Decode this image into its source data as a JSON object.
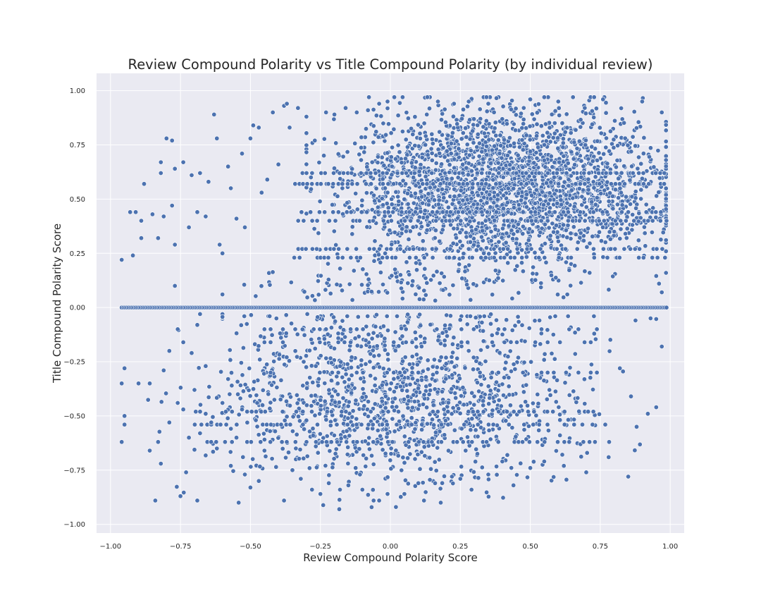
{
  "chart_data": {
    "type": "scatter",
    "title": "Review Compound Polarity vs Title Compound Polarity (by individual review)",
    "xlabel": "Review Compound Polarity Score",
    "ylabel": "Title Compound Polarity Score",
    "xlim": [
      -1.05,
      1.05
    ],
    "ylim": [
      -1.04,
      1.08
    ],
    "x_ticks": [
      -1.0,
      -0.75,
      -0.5,
      -0.25,
      0.0,
      0.25,
      0.5,
      0.75,
      1.0
    ],
    "x_tick_labels": [
      "−1.00",
      "−0.75",
      "−0.50",
      "−0.25",
      "0.00",
      "0.25",
      "0.50",
      "0.75",
      "1.00"
    ],
    "y_ticks": [
      -1.0,
      -0.75,
      -0.5,
      -0.25,
      0.0,
      0.25,
      0.5,
      0.75,
      1.0
    ],
    "y_tick_labels": [
      "−1.00",
      "−0.75",
      "−0.50",
      "−0.25",
      "0.00",
      "0.25",
      "0.50",
      "0.75",
      "1.00"
    ],
    "grid": true,
    "colors": {
      "plot_background": "#eaeaf2",
      "grid": "#ffffff",
      "marker": "#4c72b0",
      "marker_edge": "#ffffff",
      "text": "#262626"
    },
    "series": [
      {
        "points": [
          [
            -0.96,
            0.22
          ],
          [
            -0.96,
            -0.35
          ],
          [
            -0.95,
            -0.28
          ],
          [
            -0.95,
            -0.5
          ],
          [
            -0.95,
            -0.54
          ],
          [
            -0.96,
            -0.62
          ],
          [
            -0.93,
            0.44
          ],
          [
            -0.92,
            0.24
          ],
          [
            -0.91,
            0.44
          ],
          [
            -0.9,
            -0.35
          ],
          [
            -0.89,
            0.32
          ],
          [
            -0.89,
            0.4
          ],
          [
            -0.88,
            0.57
          ],
          [
            -0.86,
            -0.66
          ],
          [
            -0.85,
            0.43
          ],
          [
            -0.86,
            -0.35
          ],
          [
            -0.84,
            -0.89
          ],
          [
            -0.83,
            0.32
          ],
          [
            -0.82,
            0.67
          ],
          [
            -0.82,
            0.62
          ],
          [
            -0.81,
            0.42
          ],
          [
            -0.8,
            0.78
          ],
          [
            -0.78,
            0.77
          ],
          [
            -0.78,
            0.47
          ],
          [
            -0.77,
            0.64
          ],
          [
            -0.77,
            0.1
          ],
          [
            -0.77,
            0.29
          ],
          [
            -0.79,
            -0.2
          ],
          [
            -0.76,
            -0.44
          ],
          [
            -0.75,
            -0.87
          ],
          [
            -0.74,
            0.67
          ],
          [
            -0.73,
            -0.76
          ],
          [
            -0.72,
            0.37
          ],
          [
            -0.71,
            0.61
          ],
          [
            -0.69,
            -0.89
          ],
          [
            -0.69,
            0.44
          ],
          [
            -0.68,
            0.62
          ],
          [
            -0.66,
            0.42
          ],
          [
            -0.65,
            0.58
          ],
          [
            -0.63,
            0.89
          ],
          [
            -0.62,
            0.78
          ],
          [
            -0.61,
            0.29
          ],
          [
            -0.6,
            0.25
          ],
          [
            -0.58,
            0.65
          ],
          [
            -0.57,
            0.55
          ],
          [
            -0.55,
            0.41
          ],
          [
            -0.53,
            0.71
          ],
          [
            -0.52,
            0.37
          ],
          [
            -0.5,
            0.78
          ],
          [
            -0.49,
            0.84
          ],
          [
            -0.47,
            0.83
          ],
          [
            -0.46,
            0.53
          ],
          [
            -0.44,
            0.59
          ],
          [
            -0.42,
            0.9
          ],
          [
            -0.4,
            0.66
          ],
          [
            -0.38,
            0.93
          ],
          [
            -0.37,
            0.94
          ],
          [
            -0.36,
            0.83
          ],
          [
            -0.33,
            0.92
          ],
          [
            -0.3,
            0.88
          ],
          [
            -0.27,
            0.77
          ],
          [
            -0.23,
            0.9
          ],
          [
            -0.2,
            0.89
          ],
          [
            -0.16,
            0.92
          ],
          [
            -0.12,
            0.9
          ],
          [
            -0.08,
            0.91
          ],
          [
            -0.04,
            0.94
          ],
          [
            -0.01,
            0.95
          ],
          [
            0.17,
            0.95
          ],
          [
            0.28,
            0.95
          ],
          [
            0.35,
            0.94
          ],
          [
            0.5,
            0.96
          ],
          [
            0.55,
            0.97
          ],
          [
            0.6,
            0.95
          ],
          [
            0.76,
            0.96
          ],
          [
            0.9,
            0.95
          ],
          [
            0.97,
            0.9
          ],
          [
            -0.7,
            -0.38
          ],
          [
            -0.68,
            -0.58
          ],
          [
            -0.66,
            -0.27
          ],
          [
            -0.64,
            -0.53
          ],
          [
            -0.62,
            -0.65
          ],
          [
            -0.6,
            -0.44
          ],
          [
            -0.58,
            -0.33
          ],
          [
            -0.57,
            -0.73
          ],
          [
            -0.55,
            -0.6
          ],
          [
            -0.53,
            -0.47
          ],
          [
            -0.52,
            -0.77
          ],
          [
            -0.5,
            -0.83
          ],
          [
            -0.47,
            -0.8
          ],
          [
            -0.45,
            -0.66
          ],
          [
            -0.43,
            -0.57
          ],
          [
            -0.38,
            -0.89
          ],
          [
            -0.35,
            -0.75
          ],
          [
            -0.32,
            -0.79
          ],
          [
            -0.28,
            -0.84
          ],
          [
            -0.25,
            -0.86
          ],
          [
            -0.22,
            -0.81
          ],
          [
            -0.18,
            -0.84
          ],
          [
            -0.15,
            -0.82
          ],
          [
            -0.1,
            -0.84
          ],
          [
            -0.06,
            -0.89
          ],
          [
            -0.04,
            -0.89
          ],
          [
            -0.01,
            -0.86
          ],
          [
            0.02,
            -0.92
          ],
          [
            0.05,
            -0.86
          ],
          [
            0.1,
            -0.81
          ],
          [
            0.12,
            -0.89
          ],
          [
            0.16,
            -0.81
          ],
          [
            0.18,
            -0.9
          ],
          [
            0.22,
            -0.78
          ],
          [
            0.25,
            -0.79
          ],
          [
            0.29,
            -0.84
          ],
          [
            0.35,
            -0.77
          ],
          [
            0.4,
            -0.71
          ],
          [
            0.44,
            -0.82
          ],
          [
            0.5,
            -0.74
          ],
          [
            0.55,
            -0.71
          ],
          [
            0.62,
            -0.73
          ],
          [
            0.7,
            -0.76
          ],
          [
            0.78,
            -0.69
          ],
          [
            0.85,
            -0.78
          ],
          [
            0.88,
            -0.55
          ],
          [
            0.92,
            -0.49
          ],
          [
            0.95,
            -0.46
          ],
          [
            0.97,
            -0.18
          ],
          [
            0.93,
            -0.05
          ],
          [
            0.96,
            0.11
          ],
          [
            0.97,
            0.07
          ],
          [
            0.86,
            -0.41
          ],
          [
            0.82,
            -0.28
          ],
          [
            -0.68,
            -0.03
          ],
          [
            -0.69,
            -0.08
          ],
          [
            -0.74,
            -0.16
          ],
          [
            -0.76,
            -0.1
          ],
          [
            -0.71,
            -0.21
          ],
          [
            -0.81,
            -0.29
          ],
          [
            -0.83,
            -0.62
          ],
          [
            -0.82,
            -0.72
          ],
          [
            -0.79,
            -0.53
          ],
          [
            -0.74,
            -0.47
          ],
          [
            -0.72,
            -0.6
          ],
          [
            -0.66,
            -0.49
          ]
        ]
      }
    ]
  }
}
